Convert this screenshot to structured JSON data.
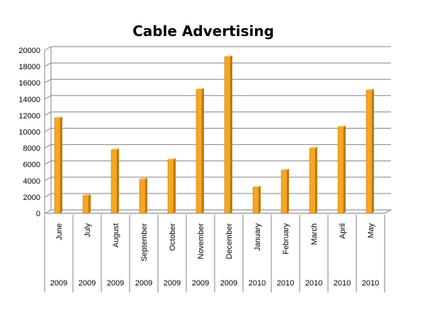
{
  "chart_data": {
    "type": "bar",
    "title": "Cable Advertising",
    "categories": [
      "June",
      "July",
      "August",
      "September",
      "October",
      "November",
      "December",
      "January",
      "February",
      "March",
      "April",
      "May"
    ],
    "years": [
      "2009",
      "2009",
      "2009",
      "2009",
      "2009",
      "2009",
      "2009",
      "2010",
      "2010",
      "2010",
      "2010",
      "2010"
    ],
    "values": [
      11700,
      2200,
      7800,
      4200,
      6600,
      15200,
      19200,
      3200,
      5300,
      8000,
      10600,
      15100
    ],
    "ylim": [
      0,
      20000
    ],
    "yticks": [
      "0",
      "2000",
      "4000",
      "6000",
      "8000",
      "10000",
      "12000",
      "14000",
      "16000",
      "18000",
      "20000"
    ],
    "grid": true,
    "legend": "none",
    "colors": {
      "bar_front": "#F5A623",
      "bar_side": "#C07A10",
      "bar_top": "#FFD27A",
      "grid": "#808080"
    }
  }
}
